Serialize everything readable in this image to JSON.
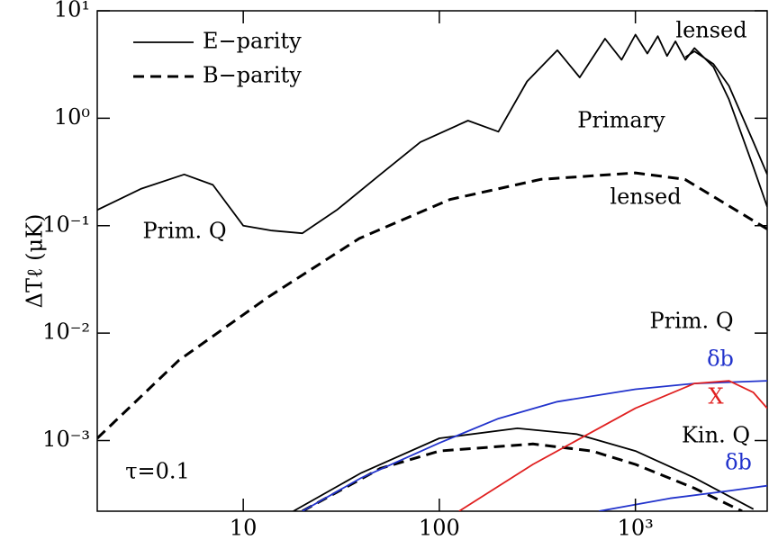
{
  "chart_data": {
    "type": "line",
    "ylabel": "ΔTℓ (μK)",
    "xlog": true,
    "ylog": true,
    "xlim": [
      1.8,
      4700
    ],
    "ylim": [
      0.00022,
      10
    ],
    "xticks": [
      10,
      100,
      {
        "value": 1000,
        "label": "10³"
      }
    ],
    "yticks": [
      {
        "value": 10,
        "label": "10¹"
      },
      {
        "value": 1,
        "label": "10⁰"
      },
      {
        "value": 0.1,
        "label": "10⁻¹"
      },
      {
        "value": 0.01,
        "label": "10⁻²"
      },
      {
        "value": 0.001,
        "label": "10⁻³"
      }
    ],
    "legend": [
      {
        "name": "E−parity",
        "dash": "solid"
      },
      {
        "name": "B−parity",
        "dash": "dashed"
      }
    ],
    "series": [
      {
        "color": "#000000",
        "dash": "solid",
        "x": [
          1.8,
          3,
          5,
          7,
          10,
          14,
          20,
          30,
          50,
          80,
          140,
          200,
          280,
          400,
          520,
          700,
          850,
          1000,
          1150,
          1300,
          1450,
          1600,
          1800,
          2000,
          2500,
          3000,
          4000,
          4700
        ],
        "values": [
          0.14,
          0.22,
          0.3,
          0.24,
          0.1,
          0.09,
          0.085,
          0.14,
          0.3,
          0.6,
          0.95,
          0.75,
          2.2,
          4.3,
          2.4,
          5.5,
          3.5,
          6,
          4,
          5.8,
          3.8,
          5.2,
          3.5,
          4.5,
          3,
          1.5,
          0.35,
          0.15
        ]
      },
      {
        "color": "#000000",
        "dash": "solid",
        "x": [
          1800,
          2000,
          2500,
          3000,
          4000,
          4700
        ],
        "values": [
          3.7,
          4.2,
          3.2,
          2,
          0.6,
          0.3
        ]
      },
      {
        "color": "#000000",
        "dash": "dashed",
        "x": [
          1.8,
          4.7,
          13.6,
          39,
          113,
          329,
          1000,
          1790,
          4700
        ],
        "values": [
          0.00105,
          0.0056,
          0.022,
          0.076,
          0.175,
          0.27,
          0.31,
          0.27,
          0.093
        ]
      },
      {
        "color": "#000000",
        "dash": "solid",
        "x": [
          18,
          40,
          100,
          250,
          500,
          1000,
          2000,
          4000
        ],
        "values": [
          0.00022,
          0.0005,
          0.00105,
          0.0013,
          0.00115,
          0.0008,
          0.00045,
          0.00023
        ]
      },
      {
        "color": "#000000",
        "dash": "dashed",
        "x": [
          20,
          50,
          100,
          300,
          600,
          1000,
          2000,
          3500
        ],
        "values": [
          0.00022,
          0.00055,
          0.0008,
          0.00093,
          0.0008,
          0.0006,
          0.00036,
          0.00022
        ]
      },
      {
        "color": "#2233cc",
        "dash": "solid",
        "x": [
          20,
          40,
          100,
          200,
          400,
          1000,
          2000,
          4700
        ],
        "values": [
          0.00022,
          0.00045,
          0.00095,
          0.0016,
          0.0023,
          0.003,
          0.0034,
          0.0036
        ]
      },
      {
        "color": "#e02020",
        "dash": "solid",
        "x": [
          126,
          300,
          1000,
          2000,
          3000,
          4000,
          4700
        ],
        "values": [
          0.00022,
          0.0006,
          0.002,
          0.0034,
          0.0036,
          0.0028,
          0.002
        ]
      },
      {
        "color": "#2233cc",
        "dash": "solid",
        "x": [
          650,
          1500,
          3000,
          4700
        ],
        "values": [
          0.00022,
          0.00029,
          0.00034,
          0.00038
        ]
      }
    ],
    "annotations": [
      {
        "text": "lensed",
        "color": "#000000"
      },
      {
        "text": "Primary",
        "color": "#000000"
      },
      {
        "text": "lensed",
        "color": "#000000"
      },
      {
        "text": "Prim. Q",
        "color": "#000000"
      },
      {
        "text": "Prim. Q",
        "color": "#000000"
      },
      {
        "text": "δb",
        "color": "#2233cc"
      },
      {
        "text": "X",
        "color": "#e02020"
      },
      {
        "text": "Kin. Q",
        "color": "#000000"
      },
      {
        "text": "δb",
        "color": "#2233cc"
      },
      {
        "text": "τ=0.1",
        "color": "#000000"
      }
    ]
  }
}
